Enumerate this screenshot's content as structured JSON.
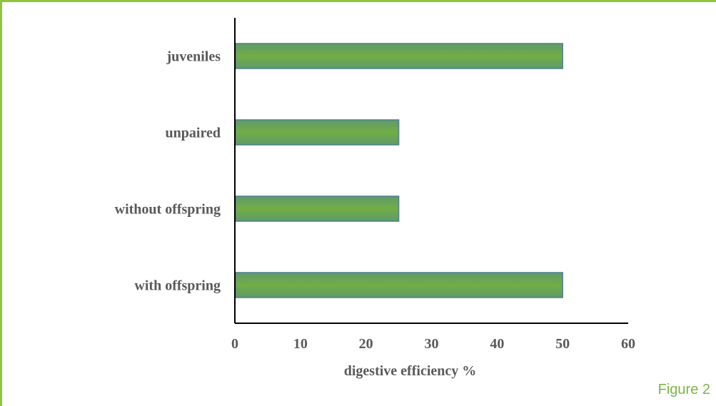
{
  "chart_data": {
    "type": "bar",
    "orientation": "horizontal",
    "categories": [
      "juveniles",
      "unpaired",
      "without offspring",
      "with offspring"
    ],
    "values": [
      50,
      25,
      25,
      50
    ],
    "xlabel": "digestive efficiency %",
    "ylabel": "",
    "xlim": [
      0,
      60
    ],
    "xticks": [
      0,
      10,
      20,
      30,
      40,
      50,
      60
    ],
    "grid": false,
    "bar_color": "#70ad47",
    "bar_edge_color": "#4f7f8c"
  },
  "figure_label": "Figure 2"
}
